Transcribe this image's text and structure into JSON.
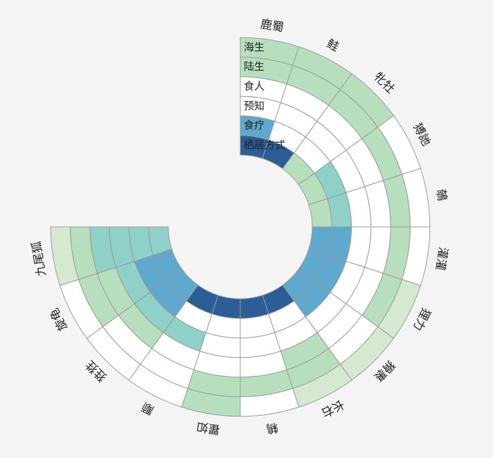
{
  "chart_data": {
    "type": "heatmap",
    "layout": "polar",
    "title": "",
    "rings": [
      "栖居方式",
      "食疗",
      "预知",
      "食人",
      "陆生",
      "海生"
    ],
    "categories": [
      "鹿蜀",
      "鲑",
      "牝牡",
      "猼訑",
      "鵸",
      "灌灌",
      "狸力",
      "猾裹",
      "长右",
      "鴸",
      "瞿如",
      "颙",
      "狌狌",
      "旋龟",
      "九尾狐"
    ],
    "values": [
      [
        5,
        4,
        0,
        0,
        2,
        2
      ],
      [
        5,
        0,
        0,
        0,
        2,
        2
      ],
      [
        2,
        0,
        0,
        0,
        2,
        2
      ],
      [
        2,
        3,
        0,
        0,
        2,
        0
      ],
      [
        2,
        3,
        0,
        0,
        2,
        0
      ],
      [
        4,
        4,
        0,
        0,
        2,
        0
      ],
      [
        4,
        4,
        0,
        0,
        2,
        1
      ],
      [
        4,
        4,
        0,
        0,
        0,
        1
      ],
      [
        5,
        0,
        0,
        2,
        2,
        1
      ],
      [
        5,
        0,
        0,
        0,
        2,
        0
      ],
      [
        5,
        0,
        0,
        0,
        2,
        2
      ],
      [
        5,
        0,
        3,
        0,
        0,
        0
      ],
      [
        4,
        4,
        3,
        2,
        0,
        0
      ],
      [
        4,
        4,
        3,
        2,
        2,
        0
      ],
      [
        3,
        3,
        3,
        3,
        2,
        1
      ]
    ],
    "color_scale": [
      "#ffffff",
      "#d4e9d0",
      "#b8dfbd",
      "#8fd0c9",
      "#5ea9cd",
      "#2b5e97"
    ],
    "grid": true
  }
}
